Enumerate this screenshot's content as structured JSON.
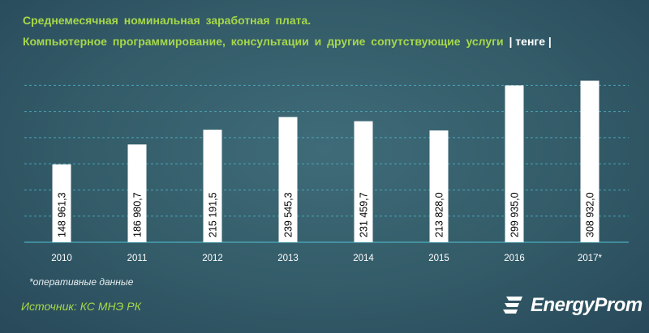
{
  "title_line1": "Среднемесячная  номинальная  заработная  плата.",
  "title_line2": "Компьютерное  программирование,  консультации  и другие сопутствующие  услуги",
  "unit": "| тенге |",
  "footnote": "*оперативные данные",
  "source": "Источник: КС МНЭ РК",
  "logo_text": "EnergyProm",
  "chart_data": {
    "type": "bar",
    "categories": [
      "2010",
      "2011",
      "2012",
      "2013",
      "2014",
      "2015",
      "2016",
      "2017*"
    ],
    "values": [
      148961.3,
      186980.7,
      215191.5,
      239545.3,
      231459.7,
      213828.0,
      299935.0,
      308932.0
    ],
    "value_labels": [
      "148 961,3",
      "186 980,7",
      "215 191,5",
      "239 545,3",
      "231 459,7",
      "213 828,0",
      "299 935,0",
      "308 932,0"
    ],
    "ylim": [
      0,
      330000
    ],
    "grid": true,
    "colors": {
      "bar": "#ffffff",
      "label": "#000000",
      "grid": "#4fb6c9",
      "tick": "#ffffff"
    }
  }
}
